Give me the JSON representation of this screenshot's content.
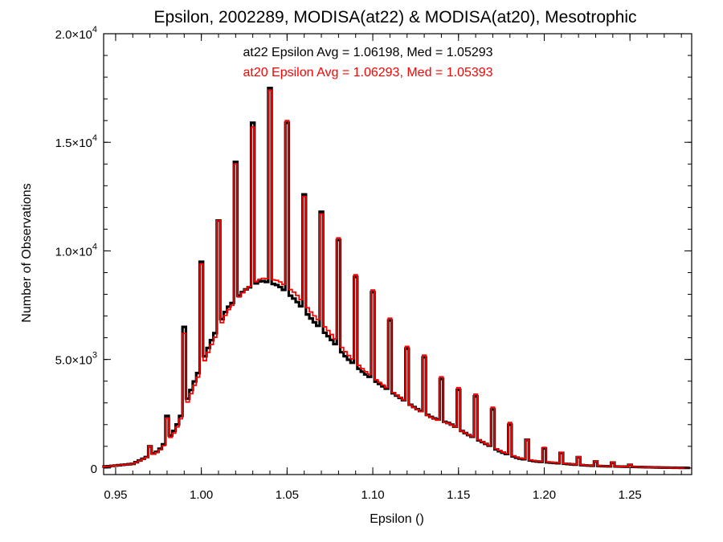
{
  "chart_data": {
    "type": "histogram",
    "title": "Epsilon, 2002289, MODISA(at22) & MODISA(at20), Mesotrophic",
    "xlabel": "Epsilon ()",
    "ylabel": "Number of Observations",
    "xlim": [
      0.943,
      1.286
    ],
    "ylim": [
      -300,
      20000
    ],
    "bin_width": 0.002,
    "x_ticks": [
      {
        "value": 0.95,
        "label": "0.95"
      },
      {
        "value": 1.0,
        "label": "1.00"
      },
      {
        "value": 1.05,
        "label": "1.05"
      },
      {
        "value": 1.1,
        "label": "1.10"
      },
      {
        "value": 1.15,
        "label": "1.15"
      },
      {
        "value": 1.2,
        "label": "1.20"
      },
      {
        "value": 1.25,
        "label": "1.25"
      }
    ],
    "y_ticks": [
      {
        "value": 0,
        "label": "0"
      },
      {
        "value": 5000,
        "label": "5.0×10",
        "exp": "3"
      },
      {
        "value": 10000,
        "label": "1.0×10",
        "exp": "4"
      },
      {
        "value": 15000,
        "label": "1.5×10",
        "exp": "4"
      },
      {
        "value": 20000,
        "label": "2.0×10",
        "exp": "4"
      }
    ],
    "annotations": [
      {
        "text": "at22 Epsilon Avg = 1.06198, Med = 1.05293",
        "color": "#000000"
      },
      {
        "text": "at20 Epsilon Avg = 1.06293, Med = 1.05393",
        "color": "#ff0000"
      }
    ],
    "series": [
      {
        "color": "#000000",
        "description": "at22",
        "base_knots": [
          [
            0.945,
            80
          ],
          [
            0.96,
            200
          ],
          [
            0.975,
            800
          ],
          [
            0.985,
            1800
          ],
          [
            0.995,
            3700
          ],
          [
            1.005,
            5500
          ],
          [
            1.015,
            7000
          ],
          [
            1.025,
            7800
          ],
          [
            1.035,
            8300
          ],
          [
            1.045,
            8200
          ],
          [
            1.055,
            7700
          ],
          [
            1.065,
            6900
          ],
          [
            1.075,
            6200
          ],
          [
            1.085,
            5300
          ],
          [
            1.095,
            4600
          ],
          [
            1.105,
            4000
          ],
          [
            1.115,
            3400
          ],
          [
            1.125,
            2800
          ],
          [
            1.135,
            2300
          ],
          [
            1.145,
            2000
          ],
          [
            1.155,
            1500
          ],
          [
            1.165,
            1100
          ],
          [
            1.175,
            700
          ],
          [
            1.185,
            430
          ],
          [
            1.195,
            300
          ],
          [
            1.205,
            240
          ],
          [
            1.215,
            180
          ],
          [
            1.225,
            120
          ],
          [
            1.235,
            90
          ],
          [
            1.25,
            60
          ],
          [
            1.27,
            20
          ],
          [
            1.286,
            5
          ]
        ],
        "spikes": [
          [
            0.97,
            1000
          ],
          [
            0.98,
            2400
          ],
          [
            0.99,
            6500
          ],
          [
            1.0,
            9500
          ],
          [
            1.01,
            11400
          ],
          [
            1.02,
            14100
          ],
          [
            1.03,
            15900
          ],
          [
            1.04,
            17500
          ],
          [
            1.05,
            15900
          ],
          [
            1.06,
            12600
          ],
          [
            1.07,
            11800
          ],
          [
            1.08,
            10500
          ],
          [
            1.09,
            8800
          ],
          [
            1.1,
            8100
          ],
          [
            1.11,
            6800
          ],
          [
            1.12,
            5500
          ],
          [
            1.13,
            5100
          ],
          [
            1.14,
            4100
          ],
          [
            1.15,
            3600
          ],
          [
            1.16,
            3300
          ],
          [
            1.17,
            2700
          ],
          [
            1.18,
            2000
          ],
          [
            1.19,
            1300
          ],
          [
            1.2,
            900
          ],
          [
            1.21,
            700
          ],
          [
            1.22,
            500
          ],
          [
            1.23,
            300
          ],
          [
            1.24,
            250
          ],
          [
            1.25,
            150
          ]
        ]
      },
      {
        "color": "#ff0000",
        "description": "at20",
        "base_knots": [
          [
            0.945,
            80
          ],
          [
            0.96,
            200
          ],
          [
            0.975,
            780
          ],
          [
            0.985,
            1750
          ],
          [
            0.995,
            3650
          ],
          [
            1.005,
            5450
          ],
          [
            1.015,
            6980
          ],
          [
            1.025,
            7820
          ],
          [
            1.035,
            8330
          ],
          [
            1.045,
            8240
          ],
          [
            1.055,
            7760
          ],
          [
            1.065,
            6960
          ],
          [
            1.075,
            6260
          ],
          [
            1.085,
            5380
          ],
          [
            1.095,
            4680
          ],
          [
            1.105,
            4080
          ],
          [
            1.115,
            3480
          ],
          [
            1.125,
            2860
          ],
          [
            1.135,
            2360
          ],
          [
            1.145,
            2050
          ],
          [
            1.155,
            1550
          ],
          [
            1.165,
            1140
          ],
          [
            1.175,
            730
          ],
          [
            1.185,
            450
          ],
          [
            1.195,
            310
          ],
          [
            1.205,
            250
          ],
          [
            1.215,
            185
          ],
          [
            1.225,
            125
          ],
          [
            1.235,
            92
          ],
          [
            1.25,
            62
          ],
          [
            1.27,
            21
          ],
          [
            1.286,
            5
          ]
        ],
        "spikes": [
          [
            0.97,
            1000
          ],
          [
            0.98,
            2300
          ],
          [
            0.99,
            6200
          ],
          [
            1.0,
            9400
          ],
          [
            1.01,
            11400
          ],
          [
            1.02,
            14000
          ],
          [
            1.03,
            15700
          ],
          [
            1.04,
            17400
          ],
          [
            1.05,
            16000
          ],
          [
            1.06,
            12500
          ],
          [
            1.07,
            11700
          ],
          [
            1.08,
            10600
          ],
          [
            1.09,
            8900
          ],
          [
            1.1,
            8200
          ],
          [
            1.11,
            6900
          ],
          [
            1.12,
            5600
          ],
          [
            1.13,
            5200
          ],
          [
            1.14,
            4200
          ],
          [
            1.15,
            3700
          ],
          [
            1.16,
            3400
          ],
          [
            1.17,
            2800
          ],
          [
            1.18,
            2100
          ],
          [
            1.19,
            1300
          ],
          [
            1.2,
            950
          ],
          [
            1.21,
            720
          ],
          [
            1.22,
            520
          ],
          [
            1.23,
            310
          ],
          [
            1.24,
            260
          ],
          [
            1.25,
            160
          ]
        ]
      }
    ]
  }
}
